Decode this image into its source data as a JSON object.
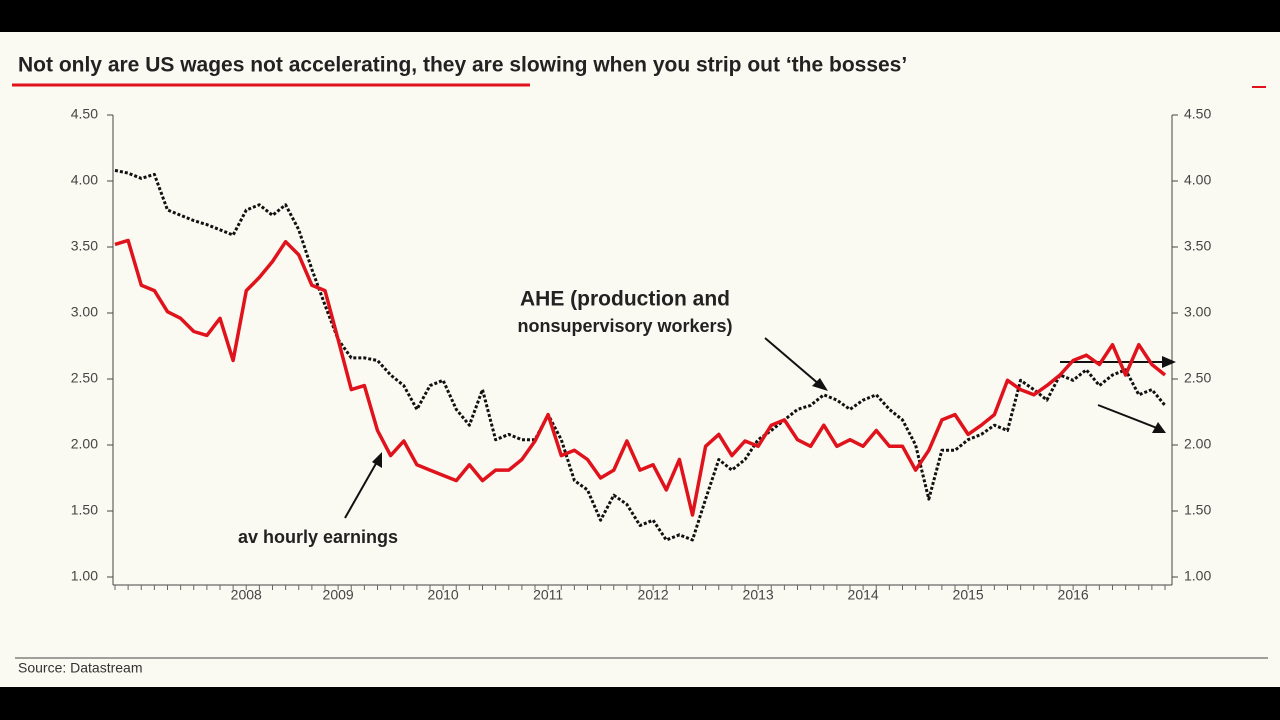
{
  "chart_data": {
    "type": "line",
    "title": "Not only are US wages not accelerating, they are slowing when you strip out ‘the bosses’",
    "source": "Source: Datastream",
    "categories": [
      null,
      null,
      null,
      null,
      null,
      null,
      null,
      null,
      null,
      null,
      "2008",
      null,
      null,
      null,
      null,
      null,
      null,
      "2009",
      null,
      null,
      null,
      null,
      null,
      null,
      null,
      "2010",
      null,
      null,
      null,
      null,
      null,
      null,
      null,
      "2011",
      null,
      null,
      null,
      null,
      null,
      null,
      null,
      "2012",
      null,
      null,
      null,
      null,
      null,
      null,
      null,
      "2013",
      null,
      null,
      null,
      null,
      null,
      null,
      null,
      "2014",
      null,
      null,
      null,
      null,
      null,
      null,
      null,
      "2015",
      null,
      null,
      null,
      null,
      null,
      null,
      null,
      "2016",
      null,
      null,
      null,
      null,
      null,
      null,
      null
    ],
    "series": [
      {
        "color": "#e0131d",
        "style": "solid",
        "values": [
          3.52,
          3.55,
          3.21,
          3.17,
          3.01,
          2.96,
          2.86,
          2.83,
          2.96,
          2.64,
          3.17,
          3.27,
          3.39,
          3.54,
          3.44,
          3.21,
          3.17,
          2.8,
          2.42,
          2.45,
          2.11,
          1.92,
          2.03,
          1.85,
          1.81,
          1.77,
          1.73,
          1.85,
          1.73,
          1.81,
          1.81,
          1.89,
          2.03,
          2.23,
          1.92,
          1.96,
          1.89,
          1.75,
          1.81,
          2.03,
          1.81,
          1.85,
          1.66,
          1.89,
          1.47,
          1.99,
          2.08,
          1.92,
          2.03,
          1.99,
          2.15,
          2.19,
          2.04,
          1.99,
          2.15,
          1.99,
          2.04,
          1.99,
          2.11,
          1.99,
          1.99,
          1.81,
          1.96,
          2.19,
          2.23,
          2.08,
          2.15,
          2.23,
          2.49,
          2.42,
          2.38,
          2.45,
          2.53,
          2.64,
          2.68,
          2.61,
          2.76,
          2.53,
          2.76,
          2.61,
          2.53
        ]
      },
      {
        "color": "#111111",
        "style": "dotted",
        "values": [
          4.08,
          4.06,
          4.02,
          4.05,
          3.78,
          3.74,
          3.7,
          3.67,
          3.63,
          3.59,
          3.78,
          3.82,
          3.74,
          3.82,
          3.63,
          3.33,
          3.06,
          2.8,
          2.66,
          2.66,
          2.64,
          2.53,
          2.45,
          2.27,
          2.45,
          2.49,
          2.27,
          2.15,
          2.42,
          2.04,
          2.08,
          2.04,
          2.04,
          2.23,
          2.04,
          1.73,
          1.66,
          1.43,
          1.62,
          1.55,
          1.39,
          1.43,
          1.28,
          1.32,
          1.28,
          1.59,
          1.89,
          1.81,
          1.89,
          2.04,
          2.11,
          2.19,
          2.27,
          2.3,
          2.38,
          2.34,
          2.27,
          2.34,
          2.38,
          2.27,
          2.19,
          2.0,
          1.59,
          1.96,
          1.96,
          2.04,
          2.08,
          2.15,
          2.11,
          2.49,
          2.42,
          2.34,
          2.53,
          2.49,
          2.57,
          2.45,
          2.53,
          2.57,
          2.38,
          2.42,
          2.3
        ]
      }
    ],
    "annotations": [
      {
        "lines": [
          "AHE (production and",
          "nonsupervisory workers)"
        ]
      },
      {
        "lines": [
          "av hourly earnings"
        ]
      }
    ],
    "ylim": [
      1,
      4.5
    ],
    "yticks": [
      {
        "value": 1,
        "label": "1.00"
      },
      {
        "value": 1.5,
        "label": "1.50"
      },
      {
        "value": 2,
        "label": "2.00"
      },
      {
        "value": 2.5,
        "label": "2.50"
      },
      {
        "value": 3,
        "label": "3.00"
      },
      {
        "value": 3.5,
        "label": "3.50"
      },
      {
        "value": 4,
        "label": "4.00"
      },
      {
        "value": 4.5,
        "label": "4.50"
      }
    ],
    "y2lim": [
      1,
      4.5
    ],
    "y2ticks": [
      {
        "value": 1,
        "label": "1.00"
      },
      {
        "value": 1.5,
        "label": "1.50"
      },
      {
        "value": 2,
        "label": "2.00"
      },
      {
        "value": 2.5,
        "label": "2.50"
      },
      {
        "value": 3,
        "label": "3.00"
      },
      {
        "value": 3.5,
        "label": "3.50"
      },
      {
        "value": 4,
        "label": "4.00"
      },
      {
        "value": 4.5,
        "label": "4.50"
      }
    ],
    "grid": false
  }
}
